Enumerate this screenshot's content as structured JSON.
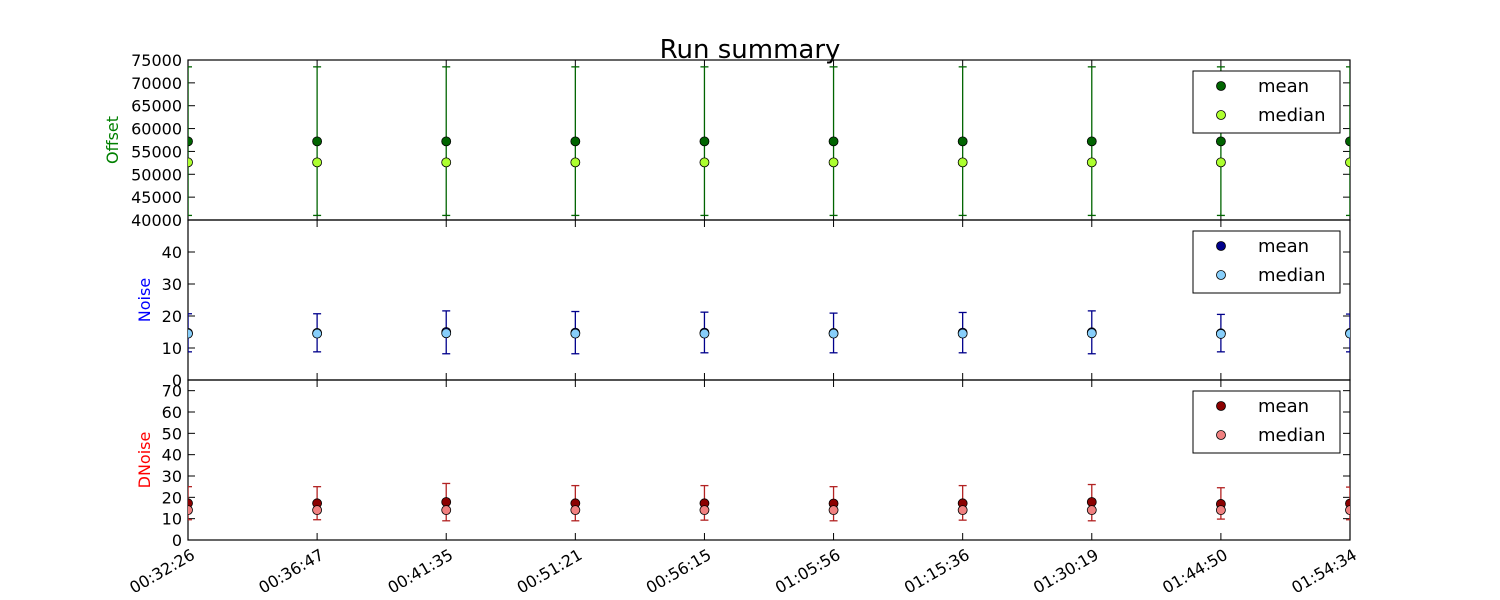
{
  "chart_data": [
    {
      "type": "scatter",
      "title": "Run summary",
      "ylabel": "Offset",
      "ylabel_color": "#008000",
      "ylim": [
        40000,
        75000
      ],
      "yticks": [
        40000,
        45000,
        50000,
        55000,
        60000,
        65000,
        70000,
        75000
      ],
      "x": [
        "00:32:26",
        "00:36:47",
        "00:41:35",
        "00:51:21",
        "00:56:15",
        "01:05:56",
        "01:15:36",
        "01:30:19",
        "01:44:50",
        "01:54:34"
      ],
      "errorbar_color": "#006400",
      "legend": "top-right",
      "series": [
        {
          "name": "mean",
          "color": "#006400",
          "values": [
            57200,
            57200,
            57200,
            57200,
            57200,
            57200,
            57200,
            57200,
            57200,
            57200
          ],
          "err_low": [
            41000,
            41000,
            41000,
            41000,
            41000,
            41000,
            41000,
            41000,
            41000,
            41000
          ],
          "err_high": [
            73500,
            73500,
            73500,
            73500,
            73500,
            73500,
            73500,
            73500,
            73500,
            73500
          ]
        },
        {
          "name": "median",
          "color": "#adff2f",
          "values": [
            52600,
            52600,
            52600,
            52600,
            52600,
            52600,
            52600,
            52600,
            52600,
            52600
          ]
        }
      ]
    },
    {
      "type": "scatter",
      "ylabel": "Noise",
      "ylabel_color": "#0000ff",
      "ylim": [
        0,
        50
      ],
      "yticks": [
        0,
        10,
        20,
        30,
        40
      ],
      "x": [
        "00:32:26",
        "00:36:47",
        "00:41:35",
        "00:51:21",
        "00:56:15",
        "01:05:56",
        "01:15:36",
        "01:30:19",
        "01:44:50",
        "01:54:34"
      ],
      "errorbar_color": "#00008b",
      "legend": "top-right",
      "series": [
        {
          "name": "mean",
          "color": "#00008b",
          "values": [
            14.7,
            14.7,
            15.0,
            14.8,
            14.8,
            14.7,
            14.8,
            14.9,
            14.6,
            14.7
          ],
          "err_low": [
            8.8,
            8.8,
            8.2,
            8.2,
            8.5,
            8.5,
            8.5,
            8.2,
            8.8,
            8.8
          ],
          "err_high": [
            20.7,
            20.7,
            21.6,
            21.4,
            21.2,
            20.9,
            21.1,
            21.6,
            20.5,
            20.6
          ]
        },
        {
          "name": "median",
          "color": "#87cefa",
          "values": [
            14.5,
            14.5,
            14.6,
            14.5,
            14.5,
            14.5,
            14.5,
            14.6,
            14.4,
            14.5
          ]
        }
      ]
    },
    {
      "type": "scatter",
      "ylabel": "DNoise",
      "ylabel_color": "#ff0000",
      "ylim": [
        0,
        75
      ],
      "yticks": [
        0,
        10,
        20,
        30,
        40,
        50,
        60,
        70
      ],
      "x": [
        "00:32:26",
        "00:36:47",
        "00:41:35",
        "00:51:21",
        "00:56:15",
        "01:05:56",
        "01:15:36",
        "01:30:19",
        "01:44:50",
        "01:54:34"
      ],
      "xtick_labels": [
        "00:32:26",
        "00:36:47",
        "00:41:35",
        "00:51:21",
        "00:56:15",
        "01:05:56",
        "01:15:36",
        "01:30:19",
        "01:44:50",
        "01:54:34"
      ],
      "errorbar_color": "#b22222",
      "legend": "top-right",
      "series": [
        {
          "name": "mean",
          "color": "#8b0000",
          "values": [
            17.2,
            17.2,
            17.8,
            17.2,
            17.2,
            17.1,
            17.2,
            17.8,
            16.9,
            17.1
          ],
          "err_low": [
            9.5,
            9.5,
            9.0,
            9.0,
            9.3,
            9.0,
            9.3,
            9.0,
            9.8,
            9.5
          ],
          "err_high": [
            25.0,
            25.0,
            26.5,
            25.5,
            25.5,
            25.0,
            25.5,
            26.0,
            24.5,
            24.8
          ]
        },
        {
          "name": "median",
          "color": "#f08080",
          "values": [
            14.0,
            14.0,
            14.0,
            14.0,
            14.0,
            14.0,
            14.0,
            14.0,
            14.0,
            14.0
          ]
        }
      ]
    }
  ]
}
